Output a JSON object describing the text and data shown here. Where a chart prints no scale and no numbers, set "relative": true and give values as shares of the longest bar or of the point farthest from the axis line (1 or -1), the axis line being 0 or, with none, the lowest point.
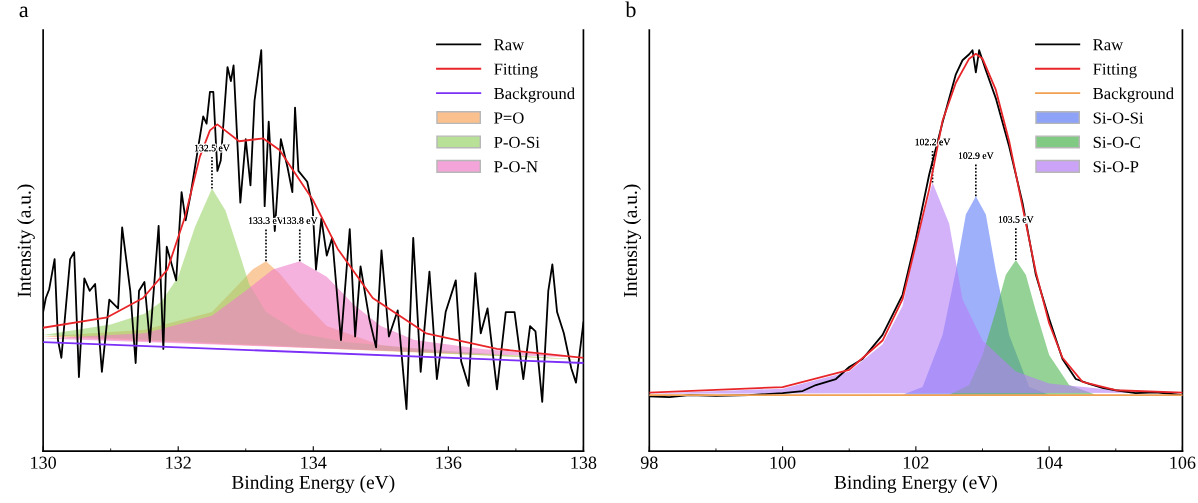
{
  "chart_data": [
    {
      "type": "line",
      "title": "a",
      "xlabel": "Binding Energy (eV)",
      "ylabel": "Intensity (a.u.)",
      "relative": true,
      "xlim": [
        130,
        138
      ],
      "xticks": [
        130,
        132,
        134,
        136,
        138
      ],
      "tick_labels": "x",
      "legend": "top right",
      "grid": false,
      "series": [
        {
          "name": "Raw",
          "color": "#000000",
          "x": [
            130.0,
            130.04,
            130.09,
            130.17,
            130.22,
            130.27,
            130.4,
            130.46,
            130.53,
            130.61,
            130.69,
            130.77,
            130.87,
            130.98,
            131.11,
            131.17,
            131.29,
            131.37,
            131.42,
            131.5,
            131.58,
            131.71,
            131.78,
            131.83,
            131.97,
            132.05,
            132.11,
            132.18,
            132.37,
            132.42,
            132.47,
            132.52,
            132.58,
            132.63,
            132.73,
            132.78,
            132.82,
            132.92,
            133.0,
            133.07,
            133.13,
            133.23,
            133.28,
            133.34,
            133.43,
            133.52,
            133.62,
            133.69,
            133.73,
            133.78,
            133.91,
            133.99,
            134.04,
            134.12,
            134.2,
            134.28,
            134.41,
            134.54,
            134.62,
            134.7,
            134.83,
            134.93,
            135.01,
            135.12,
            135.25,
            135.38,
            135.48,
            135.59,
            135.72,
            135.83,
            135.96,
            136.11,
            136.19,
            136.3,
            136.4,
            136.48,
            136.58,
            136.72,
            136.85,
            136.98,
            137.11,
            137.21,
            137.29,
            137.39,
            137.48,
            137.54,
            137.61,
            137.71,
            137.82,
            137.89,
            138.0
          ],
          "values": [
            0.347,
            0.382,
            0.404,
            0.479,
            0.277,
            0.233,
            0.479,
            0.496,
            0.185,
            0.431,
            0.4,
            0.417,
            0.198,
            0.378,
            0.356,
            0.558,
            0.4,
            0.22,
            0.4,
            0.422,
            0.272,
            0.562,
            0.255,
            0.51,
            0.426,
            0.646,
            0.576,
            0.637,
            0.835,
            0.817,
            0.896,
            0.896,
            0.699,
            0.725,
            0.958,
            0.923,
            0.962,
            0.62,
            0.778,
            0.663,
            0.874,
            1.0,
            0.611,
            0.822,
            0.549,
            0.778,
            0.707,
            0.646,
            0.857,
            0.699,
            0.672,
            0.611,
            0.453,
            0.58,
            0.488,
            0.532,
            0.277,
            0.554,
            0.286,
            0.461,
            0.33,
            0.259,
            0.501,
            0.286,
            0.351,
            0.105,
            0.532,
            0.198,
            0.448,
            0.18,
            0.347,
            0.426,
            0.224,
            0.163,
            0.444,
            0.294,
            0.356,
            0.154,
            0.347,
            0.347,
            0.18,
            0.312,
            0.299,
            0.123,
            0.4,
            0.466,
            0.347,
            0.294,
            0.207,
            0.171,
            0.321
          ]
        },
        {
          "name": "Fitting",
          "color": "#e8262a",
          "x": [
            130,
            130.95,
            131.48,
            131.84,
            132.1,
            132.32,
            132.47,
            132.58,
            132.9,
            133.26,
            133.5,
            133.99,
            134.36,
            134.88,
            135.67,
            136.72,
            138
          ],
          "values": [
            0.308,
            0.334,
            0.382,
            0.453,
            0.584,
            0.734,
            0.8,
            0.815,
            0.773,
            0.78,
            0.751,
            0.628,
            0.505,
            0.382,
            0.294,
            0.255,
            0.233
          ]
        },
        {
          "name": "Background",
          "color": "#7b2ff7",
          "x": [
            130,
            138
          ],
          "values": [
            0.272,
            0.22
          ]
        },
        {
          "name": "P=O",
          "type": "area",
          "color": "#f9a860",
          "x": [
            130,
            131.5,
            132.5,
            132.9,
            133.1,
            133.3,
            133.5,
            133.8,
            134.2,
            135,
            136,
            138
          ],
          "values": [
            0.286,
            0.303,
            0.347,
            0.417,
            0.453,
            0.474,
            0.444,
            0.382,
            0.312,
            0.264,
            0.246,
            0.228
          ]
        },
        {
          "name": "P-O-Si",
          "type": "area",
          "color": "#9bd46a",
          "x": [
            130,
            131,
            131.5,
            131.75,
            132,
            132.25,
            132.5,
            132.7,
            132.85,
            133.05,
            133.3,
            133.8,
            134.5,
            136,
            138
          ],
          "values": [
            0.29,
            0.316,
            0.343,
            0.373,
            0.435,
            0.56,
            0.655,
            0.6,
            0.523,
            0.417,
            0.347,
            0.294,
            0.272,
            0.25,
            0.228
          ]
        },
        {
          "name": "P-O-N",
          "type": "area",
          "color": "#ee7ec8",
          "x": [
            130,
            131.5,
            132.5,
            133,
            133.4,
            133.8,
            134.2,
            134.6,
            135,
            135.5,
            136.5,
            138
          ],
          "values": [
            0.281,
            0.294,
            0.338,
            0.4,
            0.453,
            0.474,
            0.435,
            0.365,
            0.312,
            0.277,
            0.255,
            0.233
          ]
        }
      ],
      "annotations": [
        {
          "text": "132.5 eV",
          "x": 132.5,
          "y": 0.655
        },
        {
          "text": "133.3 eV",
          "x": 133.3,
          "y": 0.474
        },
        {
          "text": "133.8 eV",
          "x": 133.8,
          "y": 0.474
        }
      ]
    },
    {
      "type": "line",
      "title": "b",
      "xlabel": "Binding Energy (eV)",
      "ylabel": "Intensity (a.u.)",
      "relative": true,
      "xlim": [
        98,
        106
      ],
      "xticks": [
        98,
        100,
        102,
        104,
        106
      ],
      "tick_labels": "x",
      "legend": "top right",
      "grid": false,
      "series": [
        {
          "name": "Raw",
          "color": "#000000",
          "x": [
            98,
            98.3,
            98.6,
            99.0,
            99.5,
            100.0,
            100.3,
            100.5,
            100.8,
            101.0,
            101.2,
            101.5,
            101.8,
            102.0,
            102.2,
            102.4,
            102.6,
            102.7,
            102.8,
            102.85,
            102.9,
            102.95,
            103.05,
            103.2,
            103.4,
            103.6,
            103.8,
            104.0,
            104.2,
            104.4,
            104.6,
            104.8,
            105.0,
            105.3,
            105.6,
            106.0
          ],
          "values": [
            0.137,
            0.135,
            0.14,
            0.138,
            0.14,
            0.145,
            0.15,
            0.165,
            0.18,
            0.21,
            0.23,
            0.29,
            0.39,
            0.53,
            0.69,
            0.82,
            0.94,
            0.975,
            0.99,
            1.0,
            0.945,
            1.0,
            0.95,
            0.88,
            0.76,
            0.62,
            0.44,
            0.33,
            0.23,
            0.18,
            0.168,
            0.158,
            0.152,
            0.145,
            0.147,
            0.14
          ]
        },
        {
          "name": "Fitting",
          "color": "#e8262a",
          "x": [
            98,
            100,
            101,
            101.5,
            101.8,
            102,
            102.2,
            102.4,
            102.6,
            102.8,
            102.9,
            103,
            103.2,
            103.4,
            103.6,
            103.8,
            104,
            104.2,
            104.5,
            105,
            106
          ],
          "values": [
            0.146,
            0.16,
            0.203,
            0.276,
            0.379,
            0.516,
            0.653,
            0.824,
            0.919,
            0.979,
            0.991,
            0.979,
            0.901,
            0.773,
            0.61,
            0.447,
            0.319,
            0.233,
            0.173,
            0.152,
            0.146
          ]
        },
        {
          "name": "Background",
          "color": "#f0a050",
          "x": [
            98,
            106
          ],
          "values": [
            0.14,
            0.14
          ]
        },
        {
          "name": "Si-O-Si",
          "type": "area",
          "color": "#5f7cf6",
          "x": [
            101.8,
            102.1,
            102.4,
            102.6,
            102.75,
            102.9,
            103.05,
            103.2,
            103.4,
            103.7,
            104.0
          ],
          "values": [
            0.141,
            0.16,
            0.29,
            0.45,
            0.59,
            0.636,
            0.59,
            0.45,
            0.29,
            0.16,
            0.141
          ]
        },
        {
          "name": "Si-O-C",
          "type": "area",
          "color": "#4cb54f",
          "x": [
            102.5,
            102.8,
            103.0,
            103.2,
            103.35,
            103.5,
            103.65,
            103.8,
            104.0,
            104.3,
            104.7
          ],
          "values": [
            0.141,
            0.165,
            0.24,
            0.35,
            0.44,
            0.477,
            0.44,
            0.35,
            0.24,
            0.165,
            0.141
          ]
        },
        {
          "name": "Si-O-P",
          "type": "area",
          "color": "#b67ef6",
          "x": [
            98,
            100,
            101,
            101.5,
            101.8,
            102.0,
            102.25,
            102.5,
            102.7,
            103.0,
            103.5,
            104,
            105,
            106
          ],
          "values": [
            0.143,
            0.156,
            0.199,
            0.267,
            0.362,
            0.516,
            0.67,
            0.567,
            0.379,
            0.276,
            0.199,
            0.169,
            0.152,
            0.146
          ]
        }
      ],
      "annotations": [
        {
          "text": "102.2 eV",
          "x": 102.25,
          "y": 0.67
        },
        {
          "text": "102.9 eV",
          "x": 102.9,
          "y": 0.636
        },
        {
          "text": "103.5 eV",
          "x": 103.5,
          "y": 0.477
        }
      ]
    }
  ]
}
